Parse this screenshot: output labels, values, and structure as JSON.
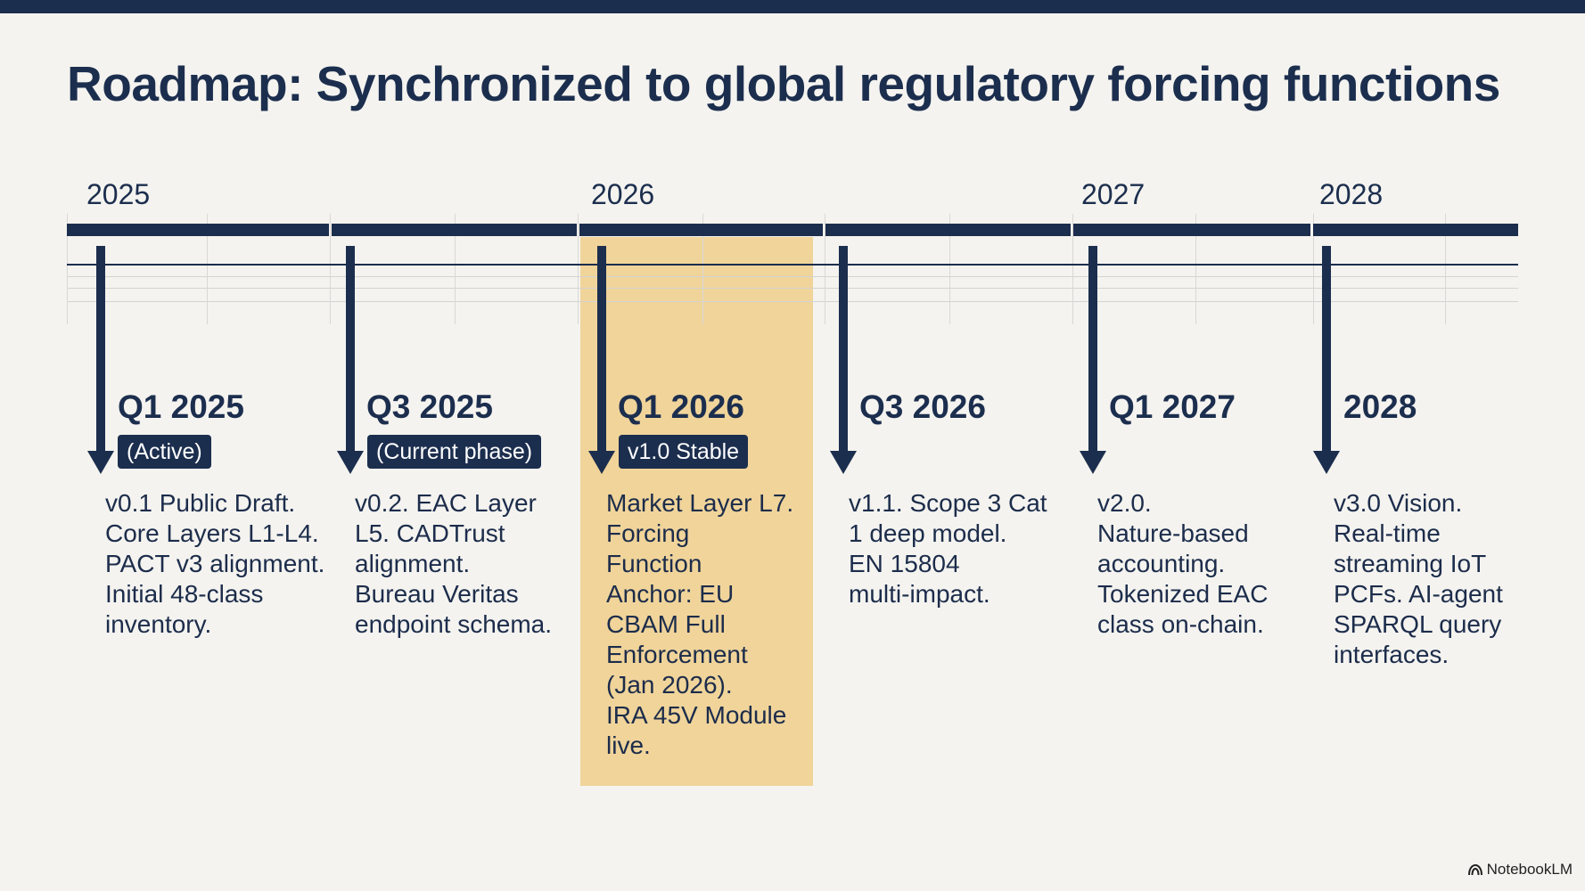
{
  "title": "Roadmap: Synchronized to global regulatory forcing functions",
  "years": [
    "2025",
    "2026",
    "2027",
    "2028"
  ],
  "milestones": [
    {
      "quarter": "Q1 2025",
      "badge": "(Active)",
      "lines": [
        "v0.1 Public Draft.",
        "Core Layers L1-L4.",
        "PACT v3 alignment.",
        "Initial 48-class",
        "inventory."
      ]
    },
    {
      "quarter": "Q3 2025",
      "badge": "(Current phase)",
      "lines": [
        "v0.2. EAC Layer",
        "L5. CADTrust",
        "alignment.",
        "Bureau Veritas",
        "endpoint schema."
      ]
    },
    {
      "quarter": "Q1 2026",
      "badge": "v1.0 Stable",
      "highlighted": true,
      "lines": [
        "Market Layer L7.",
        "Forcing",
        "Function",
        "Anchor: EU",
        "CBAM Full",
        "Enforcement",
        "(Jan 2026).",
        "IRA 45V Module",
        "live."
      ]
    },
    {
      "quarter": "Q3 2026",
      "lines": [
        "v1.1. Scope 3 Cat",
        "1 deep model.",
        "EN 15804",
        "multi-impact."
      ]
    },
    {
      "quarter": "Q1 2027",
      "lines": [
        "v2.0.",
        "Nature-based",
        "accounting.",
        "Tokenized EAC",
        "class on-chain."
      ]
    },
    {
      "quarter": "2028",
      "lines": [
        "v3.0 Vision.",
        "Real-time",
        "streaming IoT",
        "PCFs. AI-agent",
        "SPARQL query",
        "interfaces."
      ]
    }
  ],
  "branding": {
    "text": "NotebookLM",
    "icon": "notebooklm-logo-icon"
  },
  "colors": {
    "navy": "#1c2e4e",
    "highlight": "#f0d49a",
    "background": "#f4f3ef",
    "grid": "#d3d3d1"
  }
}
